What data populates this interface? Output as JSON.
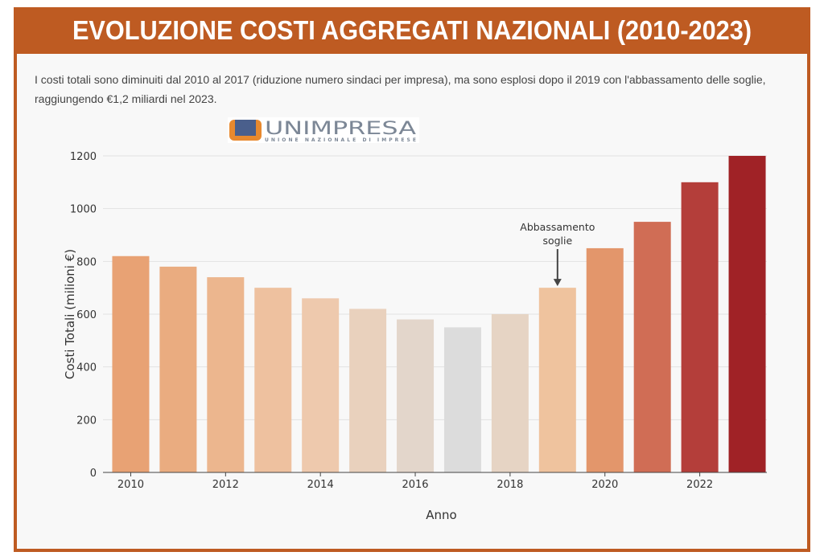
{
  "header": {
    "title": "EVOLUZIONE COSTI AGGREGATI NAZIONALI (2010-2023)"
  },
  "subtitle": "I costi totali sono diminuiti dal 2010 al 2017 (riduzione numero sindaci per impresa), ma sono esplosi dopo il 2019 con l'abbassamento delle soglie, raggiungendo €1,2 miliardi nel 2023.",
  "logo": {
    "name": "UNIMPRESA",
    "tagline": "UNIONE NAZIONALE DI IMPRESE"
  },
  "colors": {
    "frame": "#BE5B22",
    "panel": "#F8F8F8"
  },
  "chart_data": {
    "type": "bar",
    "title": "EVOLUZIONE COSTI AGGREGATI NAZIONALI (2010-2023)",
    "xlabel": "Anno",
    "ylabel": "Costi Totali (milioni €)",
    "categories": [
      "2010",
      "2011",
      "2012",
      "2013",
      "2014",
      "2015",
      "2016",
      "2017",
      "2018",
      "2019",
      "2020",
      "2021",
      "2022",
      "2023"
    ],
    "values": [
      820,
      780,
      740,
      700,
      660,
      620,
      580,
      550,
      600,
      700,
      850,
      950,
      1100,
      1200
    ],
    "bar_colors": [
      "#E8A274",
      "#EAAC80",
      "#ECB68E",
      "#EEC19F",
      "#EEC9AD",
      "#E9D1BD",
      "#E3D6CB",
      "#DCDCDC",
      "#E6D4C4",
      "#EFC39E",
      "#E3966B",
      "#D06D55",
      "#B43E3A",
      "#A02226"
    ],
    "xticks": [
      "2010",
      "2012",
      "2014",
      "2016",
      "2018",
      "2020",
      "2022"
    ],
    "yticks": [
      0,
      200,
      400,
      600,
      800,
      1000,
      1200
    ],
    "ylim": [
      0,
      1200
    ],
    "grid": true,
    "annotations": [
      {
        "x": "2019",
        "y": 700,
        "text_lines": [
          "Abbassamento",
          "soglie"
        ]
      }
    ]
  }
}
